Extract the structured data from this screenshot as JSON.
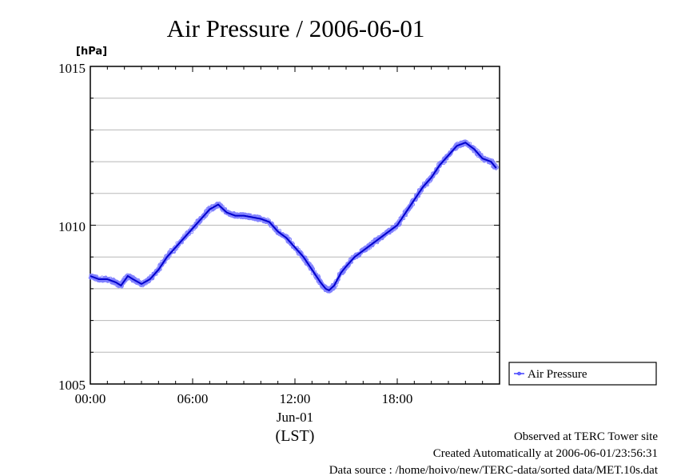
{
  "chart_data": {
    "type": "line",
    "title": "Air Pressure / 2006-06-01",
    "yunit": "[hPa]",
    "ylim": [
      1005,
      1015
    ],
    "yticks": [
      "1005",
      "1010",
      "1015"
    ],
    "xlim_hours": [
      0,
      24
    ],
    "xticks": [
      "00:00",
      "06:00",
      "12:00",
      "18:00"
    ],
    "xdate": "Jun-01",
    "xlabel": "(LST)",
    "grid": true,
    "legend": {
      "position": "right",
      "entries": [
        "Air Pressure"
      ]
    },
    "series": [
      {
        "name": "Air Pressure",
        "color": "#0000cc",
        "marker_color": "#8080ff",
        "x": [
          0.0,
          0.5,
          1.0,
          1.5,
          1.8,
          2.2,
          2.5,
          3.0,
          3.5,
          4.0,
          4.5,
          5.0,
          5.5,
          6.0,
          6.5,
          7.0,
          7.5,
          8.0,
          8.5,
          9.0,
          9.5,
          10.0,
          10.5,
          11.0,
          11.5,
          12.0,
          12.5,
          13.0,
          13.5,
          13.8,
          14.0,
          14.3,
          14.7,
          15.0,
          15.5,
          16.0,
          16.5,
          17.0,
          17.5,
          18.0,
          18.5,
          19.0,
          19.5,
          20.0,
          20.5,
          21.0,
          21.5,
          22.0,
          22.5,
          23.0,
          23.5,
          23.8
        ],
        "y": [
          1008.4,
          1008.3,
          1008.3,
          1008.2,
          1008.1,
          1008.4,
          1008.3,
          1008.15,
          1008.3,
          1008.6,
          1009.0,
          1009.3,
          1009.6,
          1009.9,
          1010.2,
          1010.5,
          1010.65,
          1010.4,
          1010.3,
          1010.3,
          1010.25,
          1010.2,
          1010.1,
          1009.8,
          1009.6,
          1009.3,
          1009.0,
          1008.6,
          1008.2,
          1008.0,
          1007.95,
          1008.1,
          1008.5,
          1008.7,
          1009.0,
          1009.2,
          1009.4,
          1009.6,
          1009.8,
          1010.0,
          1010.4,
          1010.8,
          1011.2,
          1011.5,
          1011.9,
          1012.2,
          1012.5,
          1012.6,
          1012.4,
          1012.1,
          1012.0,
          1011.8
        ]
      }
    ]
  },
  "footer": {
    "line1": "Observed at TERC Tower site",
    "line2": "Created Automatically at 2006-06-01/23:56:31",
    "line3": "Data source : /home/hoivo/new/TERC-data/sorted  data/MET.10s.dat"
  }
}
